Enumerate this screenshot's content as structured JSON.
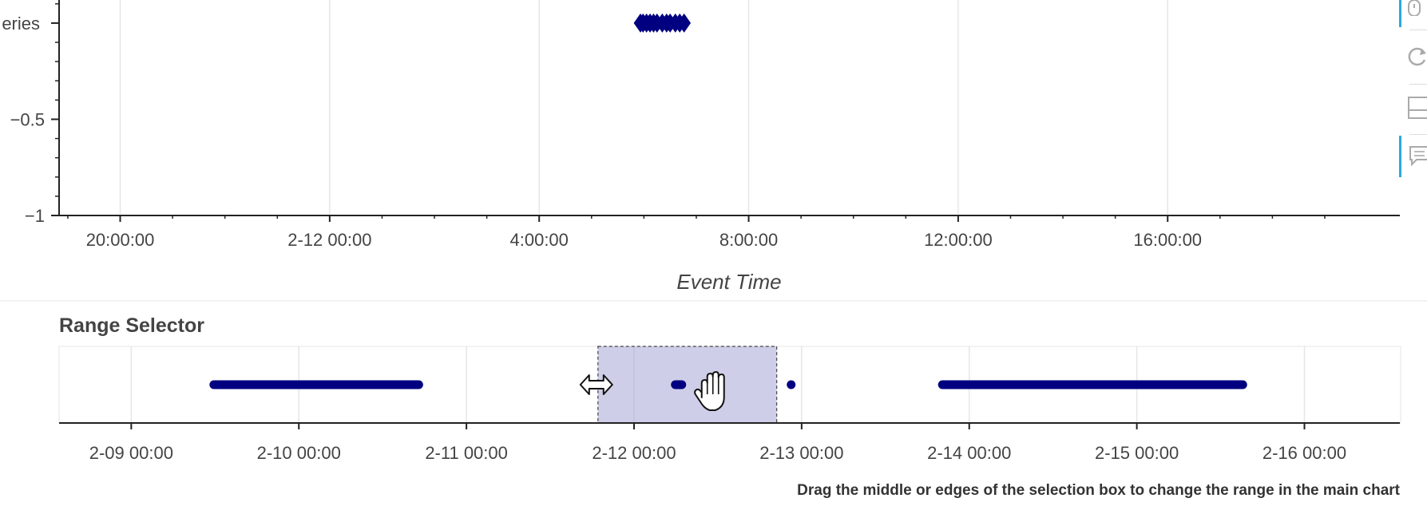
{
  "chart_data": [
    {
      "type": "scatter",
      "xlabel": "Event Time",
      "ylabel_partial": "eries",
      "ylim": [
        -1,
        0.12
      ],
      "xlim": [
        "2-11 18:50",
        "2-12 20:26"
      ],
      "grid": true,
      "x_ticks": [
        "20:00:00",
        "2-12 00:00",
        "4:00:00",
        "8:00:00",
        "12:00:00",
        "16:00:00"
      ],
      "y_ticks": [
        {
          "value": 0,
          "label": ""
        },
        {
          "value": -0.5,
          "label": "−0.5"
        },
        {
          "value": -1,
          "label": "−1"
        }
      ],
      "series": [
        {
          "marker": "diamond",
          "color": "#000080",
          "x": [
            "2-12 05:56",
            "2-12 05:59",
            "2-12 06:03",
            "2-12 06:07",
            "2-12 06:11",
            "2-12 06:15",
            "2-12 06:21",
            "2-12 06:26",
            "2-12 06:30",
            "2-12 06:36",
            "2-12 06:41",
            "2-12 06:46"
          ],
          "y": [
            0,
            0,
            0,
            0,
            0,
            0,
            0,
            0,
            0,
            0,
            0,
            0
          ]
        }
      ]
    },
    {
      "type": "scatter",
      "title": "Range Selector",
      "xlim": [
        "2-08 13:40",
        "2-16 13:40"
      ],
      "grid": true,
      "x_ticks": [
        "2-09 00:00",
        "2-10 00:00",
        "2-11 00:00",
        "2-12 00:00",
        "2-13 00:00",
        "2-14 00:00",
        "2-15 00:00",
        "2-16 00:00"
      ],
      "selection": {
        "start": "2-11 18:50",
        "end": "2-12 20:26"
      },
      "series": [
        {
          "marker": "circle",
          "color": "#000080",
          "segments": [
            {
              "start": "2-09 11:50",
              "end": "2-10 17:10"
            },
            {
              "start": "2-12 05:55",
              "end": "2-12 06:50"
            },
            {
              "start": "2-12 22:30",
              "end": "2-12 22:30"
            },
            {
              "start": "2-13 20:10",
              "end": "2-15 15:10"
            }
          ]
        }
      ]
    }
  ],
  "hint_text": "Drag the middle or edges of the selection box to change the range in the main chart",
  "toolbar": {
    "tools": [
      {
        "icon": "wheel-zoom-icon",
        "active": true
      },
      {
        "icon": "reset-icon",
        "active": false
      },
      {
        "icon": "save-icon",
        "active": false
      },
      {
        "icon": "hover-icon",
        "active": true
      }
    ]
  }
}
